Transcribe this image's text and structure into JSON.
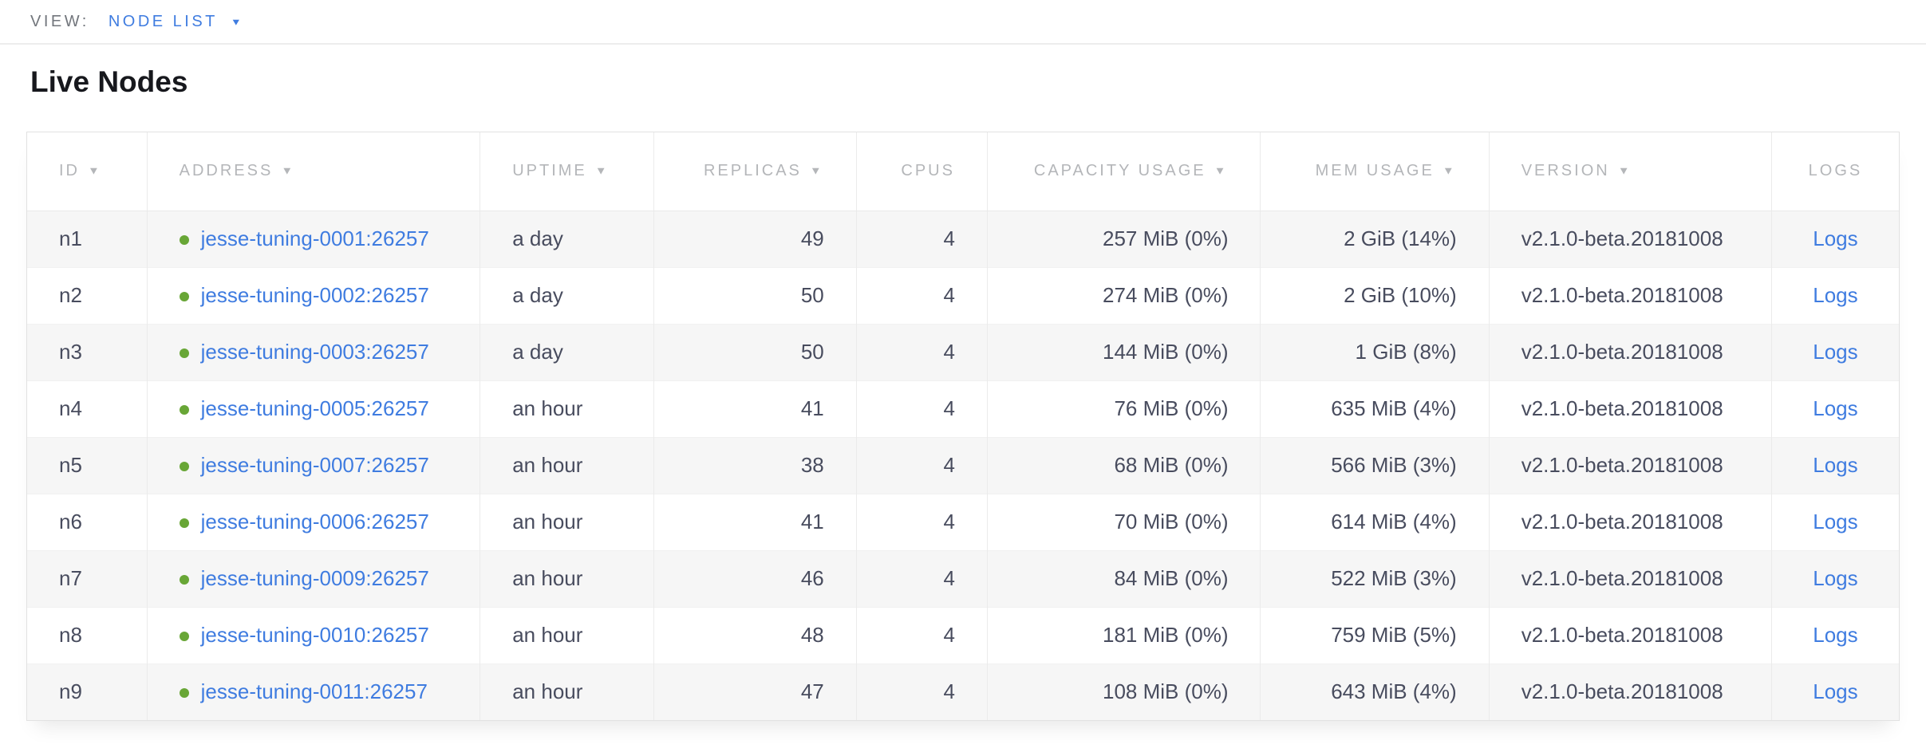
{
  "view_bar": {
    "label": "VIEW:",
    "selected": "NODE LIST"
  },
  "page": {
    "title": "Live Nodes"
  },
  "icons": {
    "sort_caret": "▼",
    "dropdown_caret": "▼"
  },
  "colors": {
    "link_blue": "#3f7ce0",
    "node_healthy_green": "#68a636",
    "header_gray": "#b4b6b9",
    "cell_text": "#484c5e",
    "row_stripe": "#f6f6f6"
  },
  "table": {
    "columns": [
      {
        "key": "id",
        "label": "ID",
        "sortable": true
      },
      {
        "key": "address",
        "label": "ADDRESS",
        "sortable": true
      },
      {
        "key": "uptime",
        "label": "UPTIME",
        "sortable": true
      },
      {
        "key": "replicas",
        "label": "REPLICAS",
        "sortable": true
      },
      {
        "key": "cpus",
        "label": "CPUS",
        "sortable": false
      },
      {
        "key": "capacity",
        "label": "CAPACITY USAGE",
        "sortable": true
      },
      {
        "key": "mem",
        "label": "MEM USAGE",
        "sortable": true
      },
      {
        "key": "version",
        "label": "VERSION",
        "sortable": true
      },
      {
        "key": "logs",
        "label": "LOGS",
        "sortable": false
      }
    ],
    "rows": [
      {
        "id": "n1",
        "address": "jesse-tuning-0001:26257",
        "uptime": "a day",
        "replicas": "49",
        "cpus": "4",
        "capacity": "257 MiB (0%)",
        "mem": "2 GiB (14%)",
        "version": "v2.1.0-beta.20181008",
        "logs": "Logs"
      },
      {
        "id": "n2",
        "address": "jesse-tuning-0002:26257",
        "uptime": "a day",
        "replicas": "50",
        "cpus": "4",
        "capacity": "274 MiB (0%)",
        "mem": "2 GiB (10%)",
        "version": "v2.1.0-beta.20181008",
        "logs": "Logs"
      },
      {
        "id": "n3",
        "address": "jesse-tuning-0003:26257",
        "uptime": "a day",
        "replicas": "50",
        "cpus": "4",
        "capacity": "144 MiB (0%)",
        "mem": "1 GiB (8%)",
        "version": "v2.1.0-beta.20181008",
        "logs": "Logs"
      },
      {
        "id": "n4",
        "address": "jesse-tuning-0005:26257",
        "uptime": "an hour",
        "replicas": "41",
        "cpus": "4",
        "capacity": "76 MiB (0%)",
        "mem": "635 MiB (4%)",
        "version": "v2.1.0-beta.20181008",
        "logs": "Logs"
      },
      {
        "id": "n5",
        "address": "jesse-tuning-0007:26257",
        "uptime": "an hour",
        "replicas": "38",
        "cpus": "4",
        "capacity": "68 MiB (0%)",
        "mem": "566 MiB (3%)",
        "version": "v2.1.0-beta.20181008",
        "logs": "Logs"
      },
      {
        "id": "n6",
        "address": "jesse-tuning-0006:26257",
        "uptime": "an hour",
        "replicas": "41",
        "cpus": "4",
        "capacity": "70 MiB (0%)",
        "mem": "614 MiB (4%)",
        "version": "v2.1.0-beta.20181008",
        "logs": "Logs"
      },
      {
        "id": "n7",
        "address": "jesse-tuning-0009:26257",
        "uptime": "an hour",
        "replicas": "46",
        "cpus": "4",
        "capacity": "84 MiB (0%)",
        "mem": "522 MiB (3%)",
        "version": "v2.1.0-beta.20181008",
        "logs": "Logs"
      },
      {
        "id": "n8",
        "address": "jesse-tuning-0010:26257",
        "uptime": "an hour",
        "replicas": "48",
        "cpus": "4",
        "capacity": "181 MiB (0%)",
        "mem": "759 MiB (5%)",
        "version": "v2.1.0-beta.20181008",
        "logs": "Logs"
      },
      {
        "id": "n9",
        "address": "jesse-tuning-0011:26257",
        "uptime": "an hour",
        "replicas": "47",
        "cpus": "4",
        "capacity": "108 MiB (0%)",
        "mem": "643 MiB (4%)",
        "version": "v2.1.0-beta.20181008",
        "logs": "Logs"
      }
    ]
  }
}
